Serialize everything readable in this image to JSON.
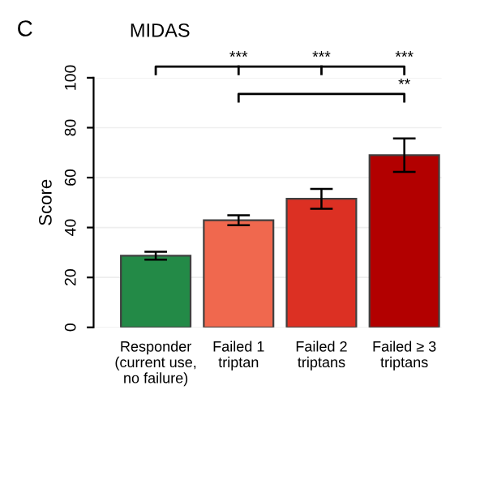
{
  "chart_data": {
    "type": "bar",
    "title": "MIDAS",
    "ylabel": "Score",
    "categories": [
      "Responder\n(current use,\nno failure)",
      "Failed 1\ntriptan",
      "Failed 2\ntriptans",
      "Failed ≥ 3\ntriptans"
    ],
    "values": [
      28.7,
      42.9,
      51.5,
      69.0
    ],
    "errors": [
      1.6,
      2.0,
      4.0,
      6.7
    ],
    "colors": [
      "#238a47",
      "#f0684e",
      "#dc3023",
      "#b20000"
    ],
    "ylim": [
      0,
      100
    ],
    "yticks": [
      0,
      20,
      40,
      60,
      80,
      100
    ],
    "grid": "y",
    "annotations": [
      "C",
      "***",
      "***",
      "***",
      "**"
    ]
  }
}
